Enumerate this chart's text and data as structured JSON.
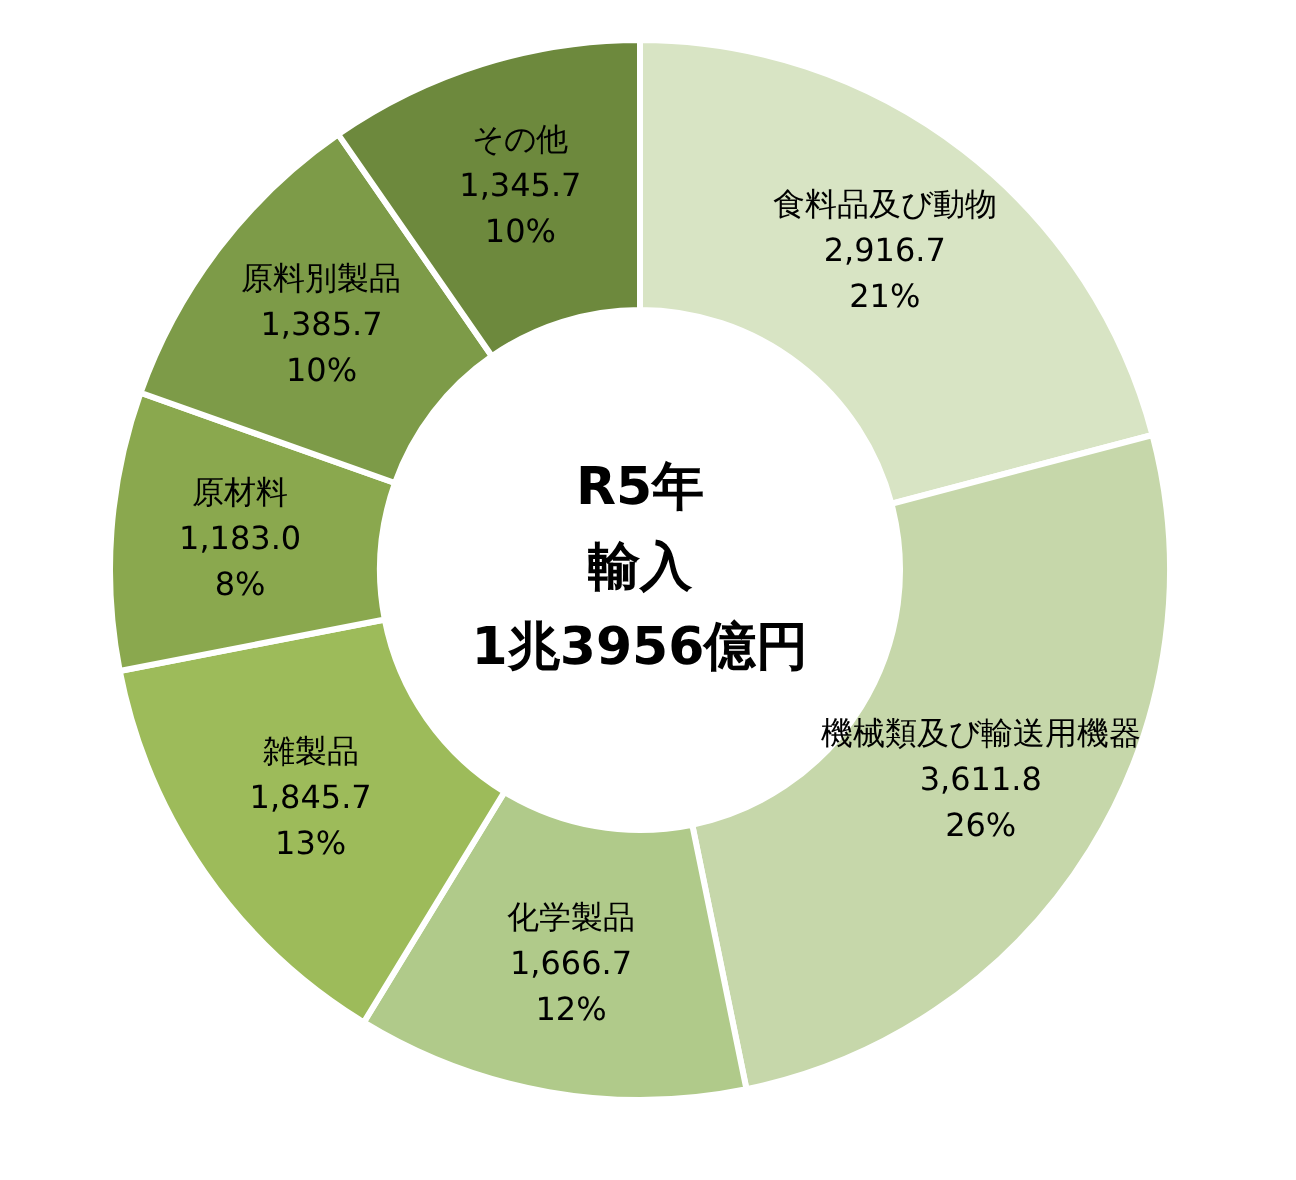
{
  "chart_data": {
    "type": "donut",
    "title": "R5年",
    "subtitle": "輸入",
    "annotations": [
      "1兆3956億円"
    ],
    "categories": [
      "食料品及び動物",
      "機械類及び輸送用機器",
      "化学製品",
      "雑製品",
      "原材料",
      "原料別製品",
      "その他"
    ],
    "values": [
      2916.7,
      3611.8,
      1666.7,
      1845.7,
      1183.0,
      1385.7,
      1345.7
    ],
    "value_labels": [
      "2,916.7\n21%",
      "3,611.8\n26%",
      "1,666.7\n12%",
      "1,845.7\n13%",
      "1,183.0\n8%",
      "1,385.7\n10%",
      "1,345.7\n10%"
    ],
    "colors": [
      "#d8e4c4",
      "#c6d7aa",
      "#b0ca8a",
      "#9dbb5a",
      "#8aa84e",
      "#7d9b48",
      "#6d893d"
    ]
  }
}
